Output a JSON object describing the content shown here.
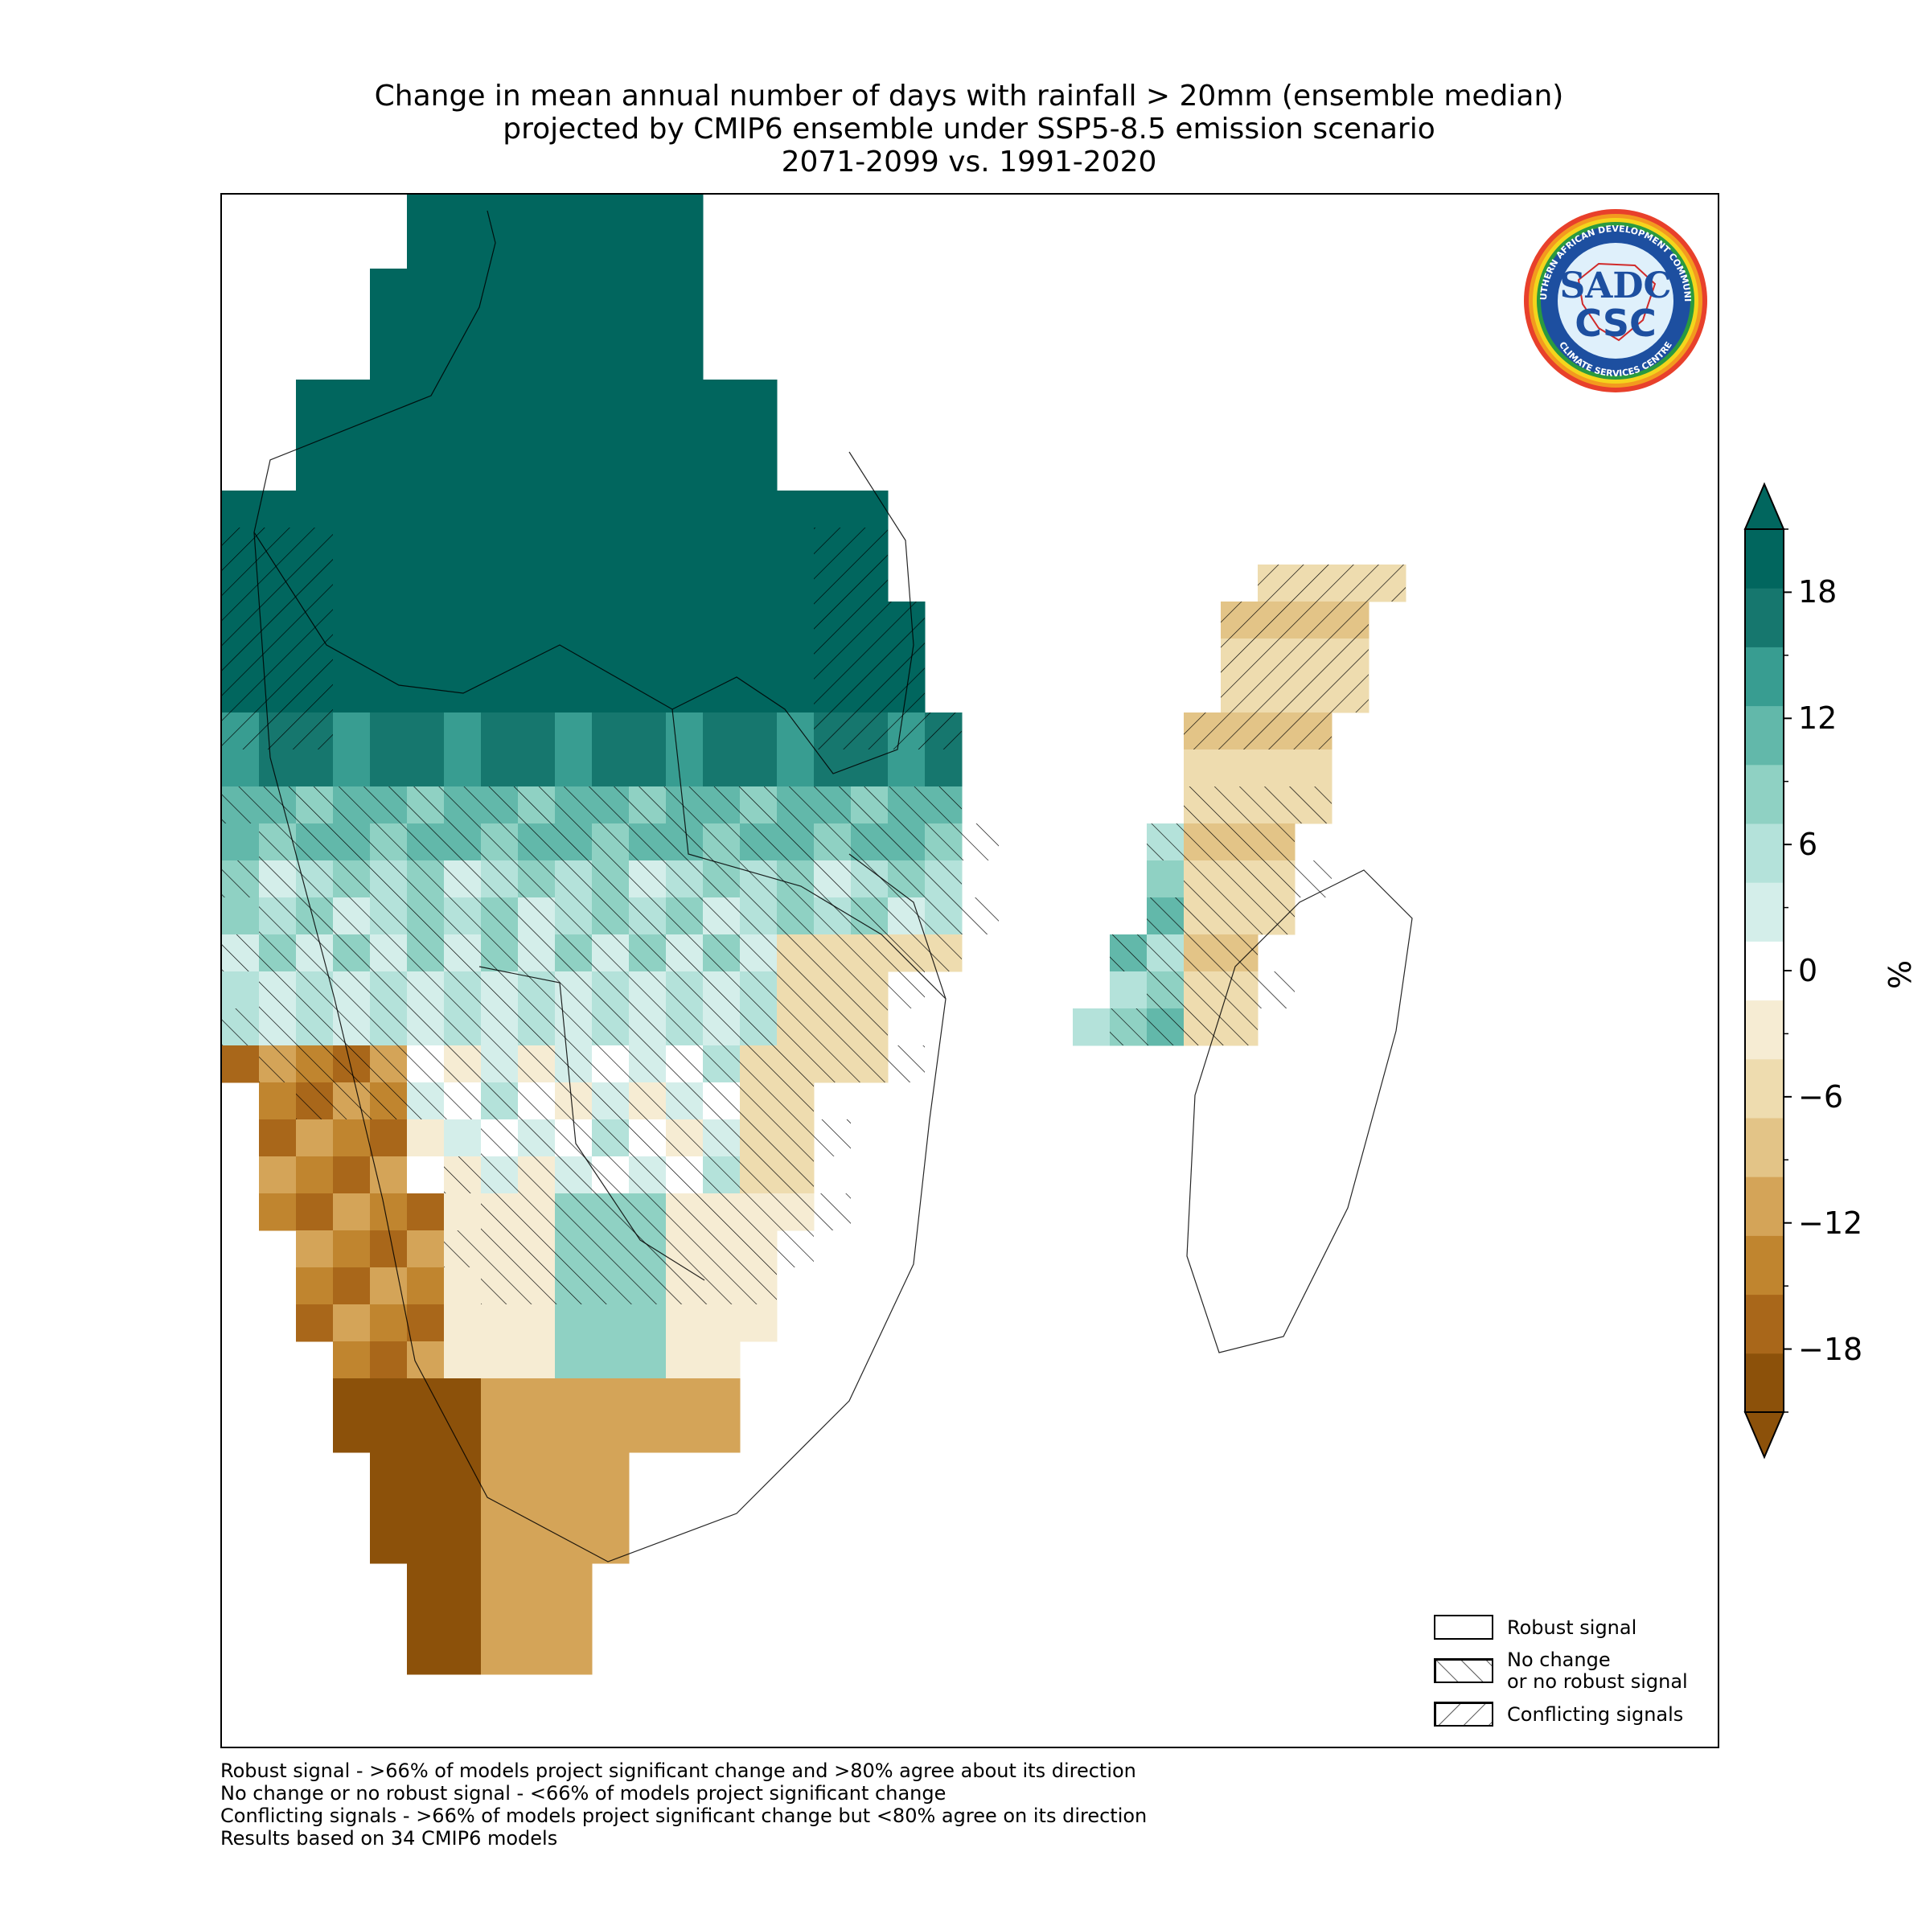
{
  "title": {
    "line1": "Change in mean annual number of days with rainfall > 20mm (ensemble median)",
    "line2": "projected by CMIP6 ensemble under SSP5-8.5 emission scenario",
    "line3": "2071-2099 vs. 1991-2020"
  },
  "logo": {
    "arc_top": "SOUTHERN AFRICAN DEVELOPMENT COMMUNITY",
    "arc_bottom": "CLIMATE SERVICES CENTRE",
    "mark1": "SADC",
    "mark2": "CSC"
  },
  "colorbar": {
    "unit": "%",
    "ticks": [
      {
        "value": 18,
        "label": "18"
      },
      {
        "value": 12,
        "label": "12"
      },
      {
        "value": 6,
        "label": "6"
      },
      {
        "value": 0,
        "label": "0"
      },
      {
        "value": -6,
        "label": "−6"
      },
      {
        "value": -12,
        "label": "−12"
      },
      {
        "value": -18,
        "label": "−18"
      }
    ],
    "range": [
      -21,
      21
    ],
    "colors": [
      "#8c510a",
      "#a9671a",
      "#c0852f",
      "#d4a458",
      "#e3c487",
      "#eedcaf",
      "#f6ecd3",
      "#ffffff",
      "#d4eeea",
      "#b4e2da",
      "#8fd1c3",
      "#62b8aa",
      "#389d91",
      "#16776e",
      "#01665e"
    ]
  },
  "legend": {
    "robust": "Robust signal",
    "nochange_1": "No change",
    "nochange_2": "or no robust signal",
    "conflicting": "Conflicting signals"
  },
  "footnotes": [
    "Robust signal - >66% of models project significant change and >80% agree about its direction",
    "No change or no robust signal - <66% of models project significant change",
    "Conflicting signals - >66% of models project significant change but <80% agree on its direction",
    "Results based on 34 CMIP6 models"
  ],
  "map": {
    "region": "Southern Africa and Madagascar",
    "variable": "Change in mean annual number of days with rainfall > 20mm",
    "pattern": "strong increase (>18%) in the north (DRC, Tanzania, northern Zambia/Angola), moderate increase in central band, mixed/no change over southern Africa interior, decrease (down to -21%) over Namibia coast and South Africa west/southwest, weak decrease on eastern Madagascar and Mozambique coast"
  }
}
